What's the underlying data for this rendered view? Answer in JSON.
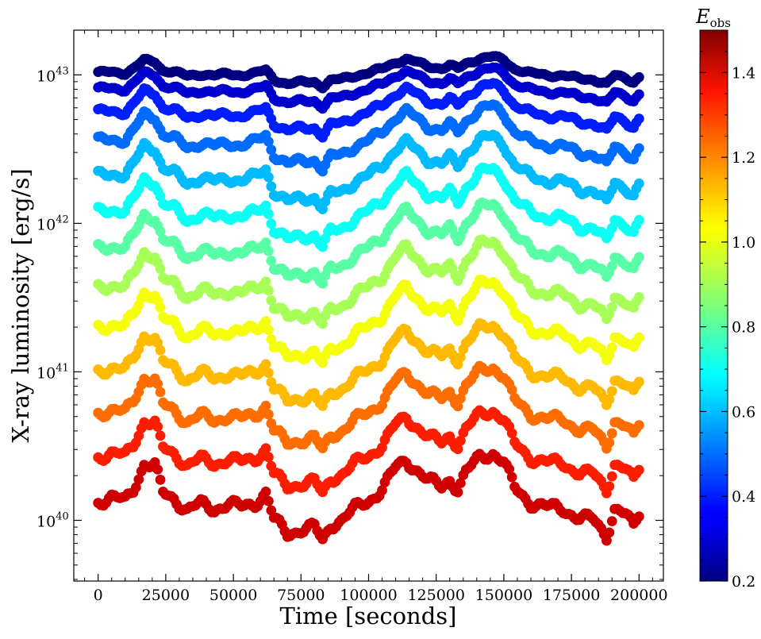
{
  "chart_data": {
    "type": "scatter",
    "xlabel": "Time [seconds]",
    "ylabel": "X-ray luminosity [erg/s]",
    "yscale": "log",
    "xlim": [
      -9000,
      209000
    ],
    "ylim": [
      3.9e+39,
      2e+43
    ],
    "x_ticks": [
      0,
      25000,
      50000,
      75000,
      100000,
      125000,
      150000,
      175000,
      200000
    ],
    "x_tick_labels": [
      "0",
      "25000",
      "50000",
      "75000",
      "100000",
      "125000",
      "150000",
      "175000",
      "200000"
    ],
    "y_ticks": [
      1e+40,
      1e+41,
      1e+42,
      1e+43
    ],
    "y_tick_labels": [
      {
        "base": "10",
        "exp": "40"
      },
      {
        "base": "10",
        "exp": "41"
      },
      {
        "base": "10",
        "exp": "42"
      },
      {
        "base": "10",
        "exp": "43"
      }
    ],
    "grid": false,
    "colorbar": {
      "label_base": "E",
      "label_sub": "obs",
      "colormap": "jet",
      "range": [
        0.2,
        1.5
      ],
      "ticks": [
        0.2,
        0.4,
        0.6,
        0.8,
        1.0,
        1.2,
        1.4
      ],
      "tick_labels": [
        "0.2",
        "0.4",
        "0.6",
        "0.8",
        "1.0",
        "1.2",
        "1.4"
      ]
    },
    "sampling": {
      "x_start": 0,
      "x_step": 1000,
      "count": 201
    },
    "base_profile": {
      "x": [
        0,
        5000,
        10000,
        13000,
        17000,
        21000,
        24000,
        28000,
        33000,
        38000,
        43000,
        48000,
        53000,
        58000,
        62000,
        65000,
        70000,
        75000,
        80000,
        83000,
        86000,
        90000,
        95000,
        100000,
        105000,
        110000,
        114000,
        118000,
        122000,
        127000,
        130000,
        133000,
        136000,
        141000,
        146000,
        150000,
        154000,
        160000,
        166000,
        172000,
        178000,
        183000,
        188000,
        191000,
        195000,
        198000,
        200000
      ],
      "log_offset": [
        0.0,
        0.02,
        0.0,
        0.08,
        0.24,
        0.22,
        0.05,
        0.02,
        -0.06,
        -0.02,
        -0.05,
        -0.02,
        -0.04,
        -0.01,
        0.05,
        -0.12,
        -0.21,
        -0.18,
        -0.17,
        -0.26,
        -0.15,
        -0.12,
        -0.05,
        0.0,
        0.08,
        0.21,
        0.26,
        0.2,
        0.13,
        0.09,
        0.14,
        0.08,
        0.18,
        0.28,
        0.31,
        0.25,
        0.08,
        -0.01,
        -0.04,
        -0.05,
        -0.11,
        -0.12,
        -0.22,
        -0.05,
        -0.09,
        -0.17,
        -0.08
      ],
      "wiggle_amplitude_dex": 0.025
    },
    "series": [
      {
        "E": 0.2,
        "level": 1.03e+43,
        "amplitude_scale": 0.35
      },
      {
        "E": 0.3,
        "level": 8e+42,
        "amplitude_scale": 0.45
      },
      {
        "E": 0.4,
        "level": 5.6e+42,
        "amplitude_scale": 0.6
      },
      {
        "E": 0.5,
        "level": 3.6e+42,
        "amplitude_scale": 0.75
      },
      {
        "E": 0.6,
        "level": 2.1e+42,
        "amplitude_scale": 0.85
      },
      {
        "E": 0.7,
        "level": 1.2e+42,
        "amplitude_scale": 0.92
      },
      {
        "E": 0.8,
        "level": 6.8e+41,
        "amplitude_scale": 0.95
      },
      {
        "E": 0.9,
        "level": 3.7e+41,
        "amplitude_scale": 1.0
      },
      {
        "E": 1.0,
        "level": 2e+41,
        "amplitude_scale": 1.0
      },
      {
        "E": 1.1,
        "level": 1.02e+41,
        "amplitude_scale": 1.0
      },
      {
        "E": 1.2,
        "level": 5.3e+40,
        "amplitude_scale": 1.0
      },
      {
        "E": 1.3,
        "level": 2.7e+40,
        "amplitude_scale": 1.0
      },
      {
        "E": 1.4,
        "level": 1.35e+40,
        "amplitude_scale": 1.05
      }
    ]
  }
}
